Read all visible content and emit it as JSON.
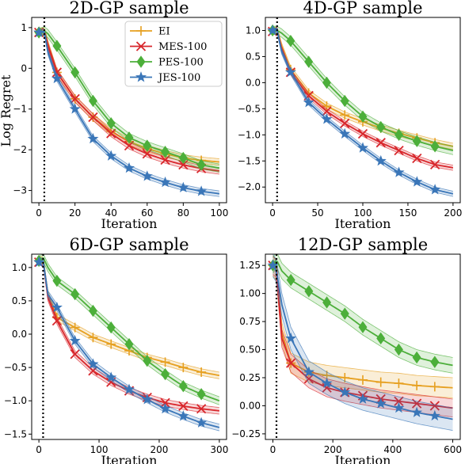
{
  "figure": {
    "ylabel": "Log Regret",
    "colors": {
      "EI": "#e6a020",
      "MES": "#d8272c",
      "PES": "#4caf3a",
      "JES": "#3a76b8"
    }
  },
  "legend": {
    "position": "top-right of first panel",
    "entries": [
      {
        "name": "EI",
        "color": "#e6a020",
        "marker": "plus"
      },
      {
        "name": "MES-100",
        "color": "#d8272c",
        "marker": "x"
      },
      {
        "name": "PES-100",
        "color": "#4caf3a",
        "marker": "diamond"
      },
      {
        "name": "JES-100",
        "color": "#3a76b8",
        "marker": "star"
      }
    ]
  },
  "chart_data": [
    {
      "type": "line",
      "title": "2D-GP sample",
      "xlabel": "Iteration",
      "ylabel": "Log Regret",
      "xlim": [
        -4,
        104
      ],
      "ylim": [
        -3.3,
        1.25
      ],
      "xticks": [
        0,
        20,
        40,
        60,
        80,
        100
      ],
      "yticks": [
        1,
        0,
        -1,
        -2,
        -3
      ],
      "vline_x": 3,
      "series": [
        {
          "name": "EI",
          "marker": "plus",
          "x": [
            0,
            3,
            5,
            10,
            20,
            30,
            40,
            50,
            60,
            70,
            80,
            90,
            100
          ],
          "y": [
            0.9,
            0.92,
            0.6,
            -0.1,
            -0.75,
            -1.2,
            -1.55,
            -1.8,
            -1.97,
            -2.1,
            -2.2,
            -2.26,
            -2.3
          ],
          "band": 0.08,
          "marker_every": 10
        },
        {
          "name": "MES-100",
          "marker": "x",
          "x": [
            0,
            3,
            5,
            10,
            20,
            30,
            40,
            50,
            60,
            70,
            80,
            90,
            100
          ],
          "y": [
            0.88,
            0.9,
            0.55,
            -0.1,
            -0.75,
            -1.2,
            -1.6,
            -1.9,
            -2.1,
            -2.25,
            -2.37,
            -2.46,
            -2.52
          ],
          "band": 0.08,
          "marker_every": 10
        },
        {
          "name": "PES-100",
          "marker": "diamond",
          "x": [
            0,
            3,
            5,
            10,
            20,
            30,
            40,
            50,
            60,
            70,
            80,
            90,
            100
          ],
          "y": [
            0.88,
            0.92,
            0.85,
            0.55,
            -0.1,
            -0.8,
            -1.35,
            -1.7,
            -1.9,
            -2.05,
            -2.2,
            -2.37,
            -2.45
          ],
          "band": 0.1,
          "marker_every": 10
        },
        {
          "name": "JES-100",
          "marker": "star",
          "x": [
            0,
            3,
            5,
            10,
            20,
            30,
            40,
            50,
            60,
            70,
            80,
            90,
            100
          ],
          "y": [
            0.88,
            0.9,
            0.4,
            -0.25,
            -1.0,
            -1.73,
            -2.15,
            -2.45,
            -2.65,
            -2.8,
            -2.93,
            -3.02,
            -3.08
          ],
          "band": 0.07,
          "marker_every": 10
        }
      ]
    },
    {
      "type": "line",
      "title": "4D-GP sample",
      "xlabel": "Iteration",
      "ylabel": "",
      "xlim": [
        -8,
        208
      ],
      "ylim": [
        -2.3,
        1.25
      ],
      "xticks": [
        0,
        50,
        100,
        150,
        200
      ],
      "yticks": [
        1.0,
        0.5,
        0.0,
        -0.5,
        -1.0,
        -1.5,
        -2.0
      ],
      "vline_x": 5,
      "series": [
        {
          "name": "EI",
          "marker": "plus",
          "x": [
            0,
            5,
            10,
            20,
            40,
            60,
            80,
            100,
            120,
            140,
            160,
            180,
            200
          ],
          "y": [
            1.0,
            1.0,
            0.7,
            0.25,
            -0.2,
            -0.45,
            -0.62,
            -0.75,
            -0.87,
            -0.97,
            -1.06,
            -1.15,
            -1.22
          ],
          "band": 0.06,
          "marker_every": 20
        },
        {
          "name": "MES-100",
          "marker": "x",
          "x": [
            0,
            5,
            10,
            20,
            40,
            60,
            80,
            100,
            120,
            140,
            160,
            180,
            200
          ],
          "y": [
            0.98,
            1.0,
            0.65,
            0.2,
            -0.25,
            -0.55,
            -0.78,
            -0.98,
            -1.15,
            -1.3,
            -1.45,
            -1.57,
            -1.63
          ],
          "band": 0.05,
          "marker_every": 20
        },
        {
          "name": "PES-100",
          "marker": "diamond",
          "x": [
            0,
            5,
            10,
            20,
            40,
            60,
            80,
            100,
            120,
            140,
            160,
            180,
            200
          ],
          "y": [
            1.0,
            1.0,
            0.95,
            0.8,
            0.4,
            0.0,
            -0.35,
            -0.65,
            -0.85,
            -1.0,
            -1.12,
            -1.22,
            -1.3
          ],
          "band": 0.08,
          "marker_every": 20
        },
        {
          "name": "JES-100",
          "marker": "star",
          "x": [
            0,
            5,
            10,
            20,
            40,
            60,
            80,
            100,
            120,
            140,
            160,
            180,
            200
          ],
          "y": [
            1.0,
            1.0,
            0.6,
            0.2,
            -0.38,
            -0.7,
            -0.98,
            -1.25,
            -1.5,
            -1.72,
            -1.9,
            -2.05,
            -2.13
          ],
          "band": 0.05,
          "marker_every": 20
        }
      ]
    },
    {
      "type": "line",
      "title": "6D-GP sample",
      "xlabel": "Iteration",
      "ylabel": "",
      "xlim": [
        -12,
        312
      ],
      "ylim": [
        -1.58,
        1.2
      ],
      "xticks": [
        0,
        100,
        200,
        300
      ],
      "yticks": [
        1.0,
        0.5,
        0.0,
        -0.5,
        -1.0,
        -1.5
      ],
      "vline_x": 7,
      "series": [
        {
          "name": "EI",
          "marker": "plus",
          "x": [
            0,
            7,
            15,
            30,
            60,
            90,
            120,
            150,
            180,
            210,
            240,
            270,
            300
          ],
          "y": [
            1.1,
            1.12,
            0.6,
            0.25,
            0.1,
            -0.05,
            -0.15,
            -0.25,
            -0.35,
            -0.42,
            -0.5,
            -0.57,
            -0.62
          ],
          "band": 0.05,
          "marker_every": 30
        },
        {
          "name": "MES-100",
          "marker": "x",
          "x": [
            0,
            7,
            15,
            30,
            60,
            90,
            120,
            150,
            180,
            210,
            240,
            270,
            300
          ],
          "y": [
            1.08,
            1.1,
            0.55,
            0.2,
            -0.3,
            -0.55,
            -0.72,
            -0.85,
            -0.95,
            -1.03,
            -1.08,
            -1.12,
            -1.15
          ],
          "band": 0.05,
          "marker_every": 30
        },
        {
          "name": "PES-100",
          "marker": "diamond",
          "x": [
            0,
            7,
            15,
            30,
            60,
            90,
            120,
            150,
            180,
            210,
            240,
            270,
            300
          ],
          "y": [
            1.1,
            1.15,
            1.0,
            0.8,
            0.6,
            0.35,
            0.1,
            -0.15,
            -0.4,
            -0.6,
            -0.78,
            -0.9,
            -1.0
          ],
          "band": 0.06,
          "marker_every": 30
        },
        {
          "name": "JES-100",
          "marker": "star",
          "x": [
            0,
            7,
            15,
            30,
            60,
            90,
            120,
            150,
            180,
            210,
            240,
            270,
            300
          ],
          "y": [
            1.08,
            1.1,
            0.6,
            0.4,
            -0.1,
            -0.45,
            -0.65,
            -0.83,
            -0.98,
            -1.12,
            -1.23,
            -1.33,
            -1.4
          ],
          "band": 0.05,
          "marker_every": 30
        }
      ]
    },
    {
      "type": "line",
      "title": "12D-GP sample",
      "xlabel": "Iteration",
      "ylabel": "",
      "xlim": [
        -25,
        625
      ],
      "ylim": [
        -0.3,
        1.35
      ],
      "xticks": [
        0,
        200,
        400,
        600
      ],
      "yticks": [
        1.25,
        1.0,
        0.75,
        0.5,
        0.25,
        0.0,
        -0.25
      ],
      "vline_x": 12,
      "series": [
        {
          "name": "EI",
          "marker": "plus",
          "x": [
            0,
            12,
            30,
            60,
            120,
            180,
            240,
            300,
            360,
            420,
            480,
            540,
            600
          ],
          "y": [
            1.25,
            1.2,
            0.65,
            0.38,
            0.3,
            0.27,
            0.25,
            0.23,
            0.21,
            0.2,
            0.18,
            0.17,
            0.16
          ],
          "band": 0.09,
          "marker_every": 60
        },
        {
          "name": "MES-100",
          "marker": "x",
          "x": [
            0,
            12,
            30,
            60,
            120,
            180,
            240,
            300,
            360,
            420,
            480,
            540,
            600
          ],
          "y": [
            1.25,
            1.22,
            0.6,
            0.38,
            0.24,
            0.16,
            0.12,
            0.09,
            0.06,
            0.04,
            0.02,
            0.0,
            -0.02
          ],
          "band": 0.08,
          "marker_every": 60
        },
        {
          "name": "PES-100",
          "marker": "diamond",
          "x": [
            0,
            12,
            30,
            60,
            120,
            180,
            240,
            300,
            360,
            420,
            480,
            540,
            600
          ],
          "y": [
            1.25,
            1.3,
            1.2,
            1.12,
            1.02,
            0.92,
            0.82,
            0.7,
            0.6,
            0.5,
            0.43,
            0.39,
            0.36
          ],
          "band": 0.07,
          "marker_every": 60
        },
        {
          "name": "JES-100",
          "marker": "star",
          "x": [
            0,
            12,
            30,
            60,
            120,
            180,
            240,
            300,
            360,
            420,
            480,
            540,
            600
          ],
          "y": [
            1.25,
            1.2,
            0.9,
            0.6,
            0.3,
            0.2,
            0.12,
            0.06,
            0.02,
            -0.02,
            -0.06,
            -0.09,
            -0.12
          ],
          "band": 0.1,
          "marker_every": 60
        }
      ]
    }
  ]
}
